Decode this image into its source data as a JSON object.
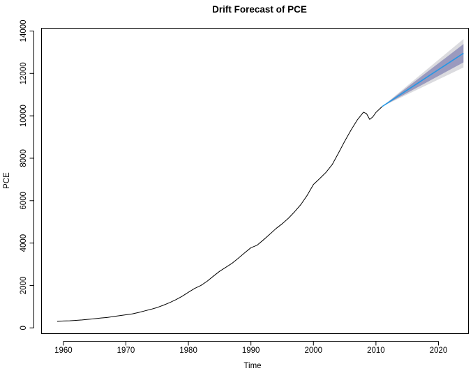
{
  "chart_data": {
    "type": "line",
    "title": "Drift Forecast of PCE",
    "xlabel": "Time",
    "ylabel": "PCE",
    "xlim": [
      1956.5,
      2024.8
    ],
    "ylim": [
      -270,
      14130
    ],
    "x_ticks": [
      1960,
      1970,
      1980,
      1990,
      2000,
      2010,
      2020
    ],
    "y_ticks": [
      0,
      2000,
      4000,
      6000,
      8000,
      10000,
      12000,
      14000
    ],
    "grid": false,
    "series": [
      {
        "role": "observed",
        "color": "#000000",
        "points": [
          [
            1959.0,
            306
          ],
          [
            1960.0,
            325
          ],
          [
            1961.0,
            336
          ],
          [
            1962.0,
            355
          ],
          [
            1963.0,
            375
          ],
          [
            1964.0,
            402
          ],
          [
            1965.0,
            432
          ],
          [
            1966.0,
            465
          ],
          [
            1967.0,
            492
          ],
          [
            1968.0,
            534
          ],
          [
            1969.0,
            575
          ],
          [
            1970.0,
            617
          ],
          [
            1971.0,
            660
          ],
          [
            1972.0,
            725
          ],
          [
            1973.0,
            800
          ],
          [
            1974.0,
            875
          ],
          [
            1975.0,
            960
          ],
          [
            1976.0,
            1070
          ],
          [
            1977.0,
            1190
          ],
          [
            1978.0,
            1330
          ],
          [
            1979.0,
            1490
          ],
          [
            1980.0,
            1680
          ],
          [
            1981.0,
            1860
          ],
          [
            1982.0,
            2000
          ],
          [
            1983.0,
            2200
          ],
          [
            1984.0,
            2440
          ],
          [
            1985.0,
            2670
          ],
          [
            1986.0,
            2860
          ],
          [
            1987.0,
            3050
          ],
          [
            1988.0,
            3290
          ],
          [
            1989.0,
            3540
          ],
          [
            1990.0,
            3780
          ],
          [
            1991.0,
            3900
          ],
          [
            1992.0,
            4150
          ],
          [
            1993.0,
            4410
          ],
          [
            1994.0,
            4680
          ],
          [
            1995.0,
            4910
          ],
          [
            1996.0,
            5170
          ],
          [
            1997.0,
            5480
          ],
          [
            1998.0,
            5820
          ],
          [
            1999.0,
            6250
          ],
          [
            2000.0,
            6760
          ],
          [
            2001.0,
            7040
          ],
          [
            2002.0,
            7330
          ],
          [
            2003.0,
            7700
          ],
          [
            2004.0,
            8240
          ],
          [
            2005.0,
            8800
          ],
          [
            2006.0,
            9320
          ],
          [
            2007.0,
            9800
          ],
          [
            2008.0,
            10170
          ],
          [
            2008.5,
            10100
          ],
          [
            2009.0,
            9830
          ],
          [
            2009.5,
            9950
          ],
          [
            2010.0,
            10160
          ],
          [
            2010.5,
            10300
          ],
          [
            2011.0,
            10440
          ]
        ]
      },
      {
        "role": "forecast",
        "color": "#2297E6",
        "points": [
          [
            2011.0,
            10440
          ],
          [
            2024.0,
            12950
          ]
        ]
      }
    ],
    "bands": [
      {
        "level": 95,
        "color": "#DBDBDF",
        "upper": [
          [
            2011.0,
            10440
          ],
          [
            2024.0,
            13620
          ]
        ],
        "lower": [
          [
            2011.0,
            10440
          ],
          [
            2024.0,
            12280
          ]
        ]
      },
      {
        "level": 80,
        "color": "#9A9ABE",
        "upper": [
          [
            2011.0,
            10440
          ],
          [
            2024.0,
            13380
          ]
        ],
        "lower": [
          [
            2011.0,
            10440
          ],
          [
            2024.0,
            12520
          ]
        ]
      }
    ]
  }
}
